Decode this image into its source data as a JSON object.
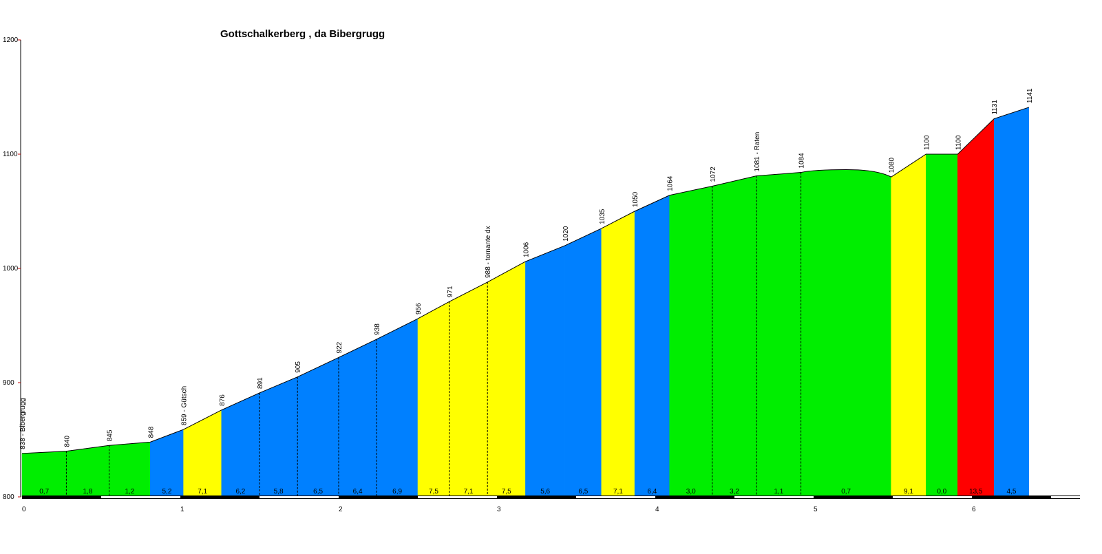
{
  "chart_data": {
    "type": "area",
    "title": "Gottschalkerberg , da Bibergrugg",
    "xlabel": "",
    "ylabel": "",
    "xlim": [
      0,
      6.68
    ],
    "ylim": [
      800,
      1200
    ],
    "yticks": [
      800,
      900,
      1000,
      1100,
      1200
    ],
    "xticks": [
      0,
      1,
      2,
      3,
      4,
      5,
      6
    ],
    "grid": false,
    "colors": {
      "green": "#00ee00",
      "blue": "#0080ff",
      "yellow": "#ffff00",
      "red": "#ff0000"
    },
    "points": [
      {
        "x": 0.0,
        "y": 838,
        "label": "838 - Bibergrugg"
      },
      {
        "x": 0.28,
        "y": 840,
        "label": "840"
      },
      {
        "x": 0.55,
        "y": 845,
        "label": "845"
      },
      {
        "x": 0.81,
        "y": 848,
        "label": "848"
      },
      {
        "x": 1.02,
        "y": 859,
        "label": "859 - Gütsch"
      },
      {
        "x": 1.26,
        "y": 876,
        "label": "876"
      },
      {
        "x": 1.5,
        "y": 891,
        "label": "891"
      },
      {
        "x": 1.74,
        "y": 905,
        "label": "905"
      },
      {
        "x": 2.0,
        "y": 922,
        "label": "922"
      },
      {
        "x": 2.24,
        "y": 938,
        "label": "938"
      },
      {
        "x": 2.5,
        "y": 956,
        "label": "956"
      },
      {
        "x": 2.7,
        "y": 971,
        "label": "971"
      },
      {
        "x": 2.94,
        "y": 988,
        "label": "988 - tornante dx"
      },
      {
        "x": 3.18,
        "y": 1006,
        "label": "1006"
      },
      {
        "x": 3.43,
        "y": 1020,
        "label": "1020"
      },
      {
        "x": 3.66,
        "y": 1035,
        "label": "1035"
      },
      {
        "x": 3.87,
        "y": 1050,
        "label": "1050"
      },
      {
        "x": 4.09,
        "y": 1064,
        "label": "1064"
      },
      {
        "x": 4.36,
        "y": 1072,
        "label": "1072"
      },
      {
        "x": 4.64,
        "y": 1081,
        "label": "1081 - Raten"
      },
      {
        "x": 4.92,
        "y": 1084,
        "label": "1084"
      },
      {
        "x": 5.49,
        "y": 1080,
        "label": "1080"
      },
      {
        "x": 5.71,
        "y": 1100,
        "label": "1100"
      },
      {
        "x": 5.91,
        "y": 1100,
        "label": "1100"
      },
      {
        "x": 6.14,
        "y": 1131,
        "label": "1131"
      },
      {
        "x": 6.36,
        "y": 1141,
        "label": "1141"
      }
    ],
    "segments": [
      {
        "gradient": "0,7",
        "color": "green"
      },
      {
        "gradient": "1,8",
        "color": "green"
      },
      {
        "gradient": "1,2",
        "color": "green"
      },
      {
        "gradient": "5,2",
        "color": "blue"
      },
      {
        "gradient": "7,1",
        "color": "yellow"
      },
      {
        "gradient": "6,2",
        "color": "blue"
      },
      {
        "gradient": "5,8",
        "color": "blue"
      },
      {
        "gradient": "6,5",
        "color": "blue"
      },
      {
        "gradient": "6,4",
        "color": "blue"
      },
      {
        "gradient": "6,9",
        "color": "blue"
      },
      {
        "gradient": "7,5",
        "color": "yellow"
      },
      {
        "gradient": "7,1",
        "color": "yellow"
      },
      {
        "gradient": "7,5",
        "color": "yellow"
      },
      {
        "gradient": "5,6",
        "color": "blue"
      },
      {
        "gradient": "6,5",
        "color": "blue"
      },
      {
        "gradient": "7,1",
        "color": "yellow"
      },
      {
        "gradient": "6,4",
        "color": "blue"
      },
      {
        "gradient": "3,0",
        "color": "green"
      },
      {
        "gradient": "3,2",
        "color": "green"
      },
      {
        "gradient": "1,1",
        "color": "green"
      },
      {
        "gradient": "0,7",
        "color": "green"
      },
      {
        "gradient": "9,1",
        "color": "yellow"
      },
      {
        "gradient": "0,0",
        "color": "green"
      },
      {
        "gradient": "13,5",
        "color": "red"
      },
      {
        "gradient": "4,5",
        "color": "blue"
      }
    ],
    "color_breaks": [
      0,
      3,
      4,
      5,
      10,
      13,
      14,
      15,
      16,
      17,
      21,
      22,
      23,
      24,
      25
    ],
    "smooth_between": [
      [
        20,
        21
      ]
    ]
  }
}
